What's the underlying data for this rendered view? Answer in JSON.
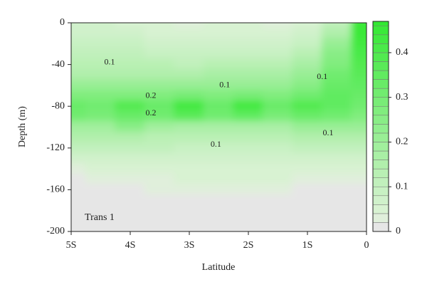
{
  "chart_data": {
    "type": "contour",
    "annotation": "Trans 1",
    "xlabel": "Latitude",
    "ylabel": "Depth (m)",
    "x": [
      -5,
      -4.5,
      -4,
      -3.5,
      -3,
      -2.5,
      -2,
      -1.5,
      -1,
      -0.5,
      0
    ],
    "y": [
      0,
      -10,
      -20,
      -30,
      -40,
      -50,
      -60,
      -70,
      -80,
      -90,
      -100,
      -110,
      -120,
      -130,
      -140,
      -150,
      -160,
      -170,
      -180,
      -190,
      -200
    ],
    "z": [
      [
        0.06,
        0.06,
        0.05,
        0.04,
        0.03,
        0.04,
        0.04,
        0.03,
        0.04,
        0.1,
        0.45
      ],
      [
        0.07,
        0.07,
        0.06,
        0.05,
        0.04,
        0.05,
        0.05,
        0.04,
        0.06,
        0.15,
        0.44
      ],
      [
        0.08,
        0.08,
        0.08,
        0.07,
        0.06,
        0.07,
        0.07,
        0.06,
        0.09,
        0.2,
        0.42
      ],
      [
        0.1,
        0.1,
        0.1,
        0.09,
        0.08,
        0.09,
        0.09,
        0.09,
        0.12,
        0.24,
        0.4
      ],
      [
        0.12,
        0.12,
        0.12,
        0.12,
        0.11,
        0.12,
        0.12,
        0.12,
        0.16,
        0.27,
        0.38
      ],
      [
        0.15,
        0.15,
        0.15,
        0.15,
        0.15,
        0.16,
        0.16,
        0.16,
        0.2,
        0.3,
        0.36
      ],
      [
        0.2,
        0.2,
        0.2,
        0.2,
        0.2,
        0.21,
        0.21,
        0.21,
        0.24,
        0.32,
        0.34
      ],
      [
        0.26,
        0.26,
        0.27,
        0.27,
        0.28,
        0.27,
        0.28,
        0.27,
        0.3,
        0.34,
        0.32
      ],
      [
        0.32,
        0.31,
        0.38,
        0.33,
        0.42,
        0.33,
        0.42,
        0.32,
        0.38,
        0.35,
        0.3
      ],
      [
        0.3,
        0.29,
        0.32,
        0.3,
        0.36,
        0.3,
        0.34,
        0.29,
        0.32,
        0.3,
        0.26
      ],
      [
        0.18,
        0.18,
        0.24,
        0.18,
        0.17,
        0.17,
        0.17,
        0.17,
        0.2,
        0.2,
        0.2
      ],
      [
        0.14,
        0.14,
        0.15,
        0.13,
        0.12,
        0.12,
        0.12,
        0.13,
        0.14,
        0.14,
        0.14
      ],
      [
        0.1,
        0.1,
        0.1,
        0.1,
        0.09,
        0.09,
        0.09,
        0.09,
        0.1,
        0.1,
        0.1
      ],
      [
        0.07,
        0.07,
        0.07,
        0.07,
        0.07,
        0.07,
        0.07,
        0.07,
        0.07,
        0.07,
        0.07
      ],
      [
        0.03,
        0.04,
        0.05,
        0.05,
        0.05,
        0.05,
        0.05,
        0.05,
        0.05,
        0.05,
        0.05
      ],
      [
        0.01,
        0.02,
        0.03,
        0.03,
        0.04,
        0.04,
        0.04,
        0.04,
        0.03,
        0.03,
        0.03
      ],
      [
        0.01,
        0.01,
        0.01,
        0.02,
        0.03,
        0.03,
        0.03,
        0.02,
        0.01,
        0.01,
        0.01
      ],
      [
        0.01,
        0.01,
        0.01,
        0.01,
        0.01,
        0.01,
        0.01,
        0.01,
        0.01,
        0.01,
        0.01
      ],
      [
        0.01,
        0.01,
        0.01,
        0.01,
        0.01,
        0.01,
        0.01,
        0.01,
        0.01,
        0.01,
        0.01
      ],
      [
        0.01,
        0.01,
        0.01,
        0.01,
        0.01,
        0.01,
        0.01,
        0.01,
        0.01,
        0.01,
        0.01
      ],
      [
        0.01,
        0.01,
        0.01,
        0.01,
        0.01,
        0.01,
        0.01,
        0.01,
        0.01,
        0.01,
        0.01
      ]
    ],
    "xlim": [
      -5,
      0
    ],
    "xticks": [
      {
        "value": -5,
        "label": "5S"
      },
      {
        "value": -4,
        "label": "4S"
      },
      {
        "value": -3,
        "label": "3S"
      },
      {
        "value": -2,
        "label": "2S"
      },
      {
        "value": -1,
        "label": "1S"
      },
      0
    ],
    "ylim": [
      -200,
      0
    ],
    "yticks": [
      0,
      -40,
      -80,
      -120,
      -160,
      -200
    ],
    "clim": [
      0,
      0.47
    ],
    "cticks": [
      0,
      0.1,
      0.2,
      0.3,
      0.4
    ],
    "level_step": 0.02,
    "cmap": [
      [
        0,
        "#e6e6e6"
      ],
      [
        0.06,
        "#ddf2d7"
      ],
      [
        1,
        "#2ee82e"
      ]
    ],
    "contour_labels": [
      {
        "text": "0.1",
        "x": -4.35,
        "y": -38
      },
      {
        "text": "0.1",
        "x": -2.4,
        "y": -60
      },
      {
        "text": "0.1",
        "x": -0.75,
        "y": -52
      },
      {
        "text": "0.2",
        "x": -3.65,
        "y": -70
      },
      {
        "text": "0.2",
        "x": -3.65,
        "y": -87
      },
      {
        "text": "0.1",
        "x": -2.55,
        "y": -117
      },
      {
        "text": "0.1",
        "x": -0.65,
        "y": -106
      }
    ]
  }
}
